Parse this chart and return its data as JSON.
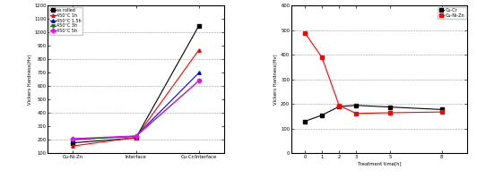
{
  "left": {
    "x_labels": [
      "Cu-Ni-Zn",
      "Interface",
      "Cu-Cr/Interface"
    ],
    "x_positions": [
      0,
      1,
      2
    ],
    "ylabel": "Vickers Hardness(Hv)",
    "series": [
      {
        "label": "as rolled",
        "color": "black",
        "marker": "s",
        "values": [
          178,
          215,
          1050
        ]
      },
      {
        "label": "450°C 1h",
        "color": "red",
        "marker": "^",
        "values": [
          155,
          218,
          870
        ]
      },
      {
        "label": "450°C 1.5h",
        "color": "blue",
        "marker": "^",
        "values": [
          202,
          228,
          700
        ]
      },
      {
        "label": "450°C 3h",
        "color": "green",
        "marker": "v",
        "values": [
          205,
          225,
          640
        ]
      },
      {
        "label": "450°C 5h",
        "color": "magenta",
        "marker": "D",
        "values": [
          210,
          230,
          640
        ]
      }
    ],
    "ylim": [
      100,
      1200
    ],
    "yticks": [
      100,
      200,
      300,
      400,
      500,
      600,
      700,
      800,
      900,
      1000,
      1100,
      1200
    ],
    "grid_ticks": [
      200,
      400,
      600,
      800,
      1000,
      1200
    ]
  },
  "right": {
    "xlabel": "Treatment time[h]",
    "ylabel": "Vickers Hardness(Hv)",
    "x_values": [
      0,
      1,
      2,
      3,
      5,
      8
    ],
    "x_labels": [
      "0",
      "1",
      "2",
      "3",
      "5",
      "8"
    ],
    "series": [
      {
        "label": "Cu-Cr",
        "color": "black",
        "marker": "s",
        "values": [
          130,
          155,
          190,
          195,
          188,
          178
        ]
      },
      {
        "label": "Cu-Ni-Zn",
        "color": "red",
        "marker": "s",
        "values": [
          490,
          390,
          195,
          162,
          165,
          168
        ]
      }
    ],
    "ylim": [
      0,
      600
    ],
    "yticks": [
      0,
      100,
      200,
      300,
      400,
      500,
      600
    ],
    "grid_ticks": [
      100,
      200,
      300,
      400,
      500,
      600
    ]
  }
}
